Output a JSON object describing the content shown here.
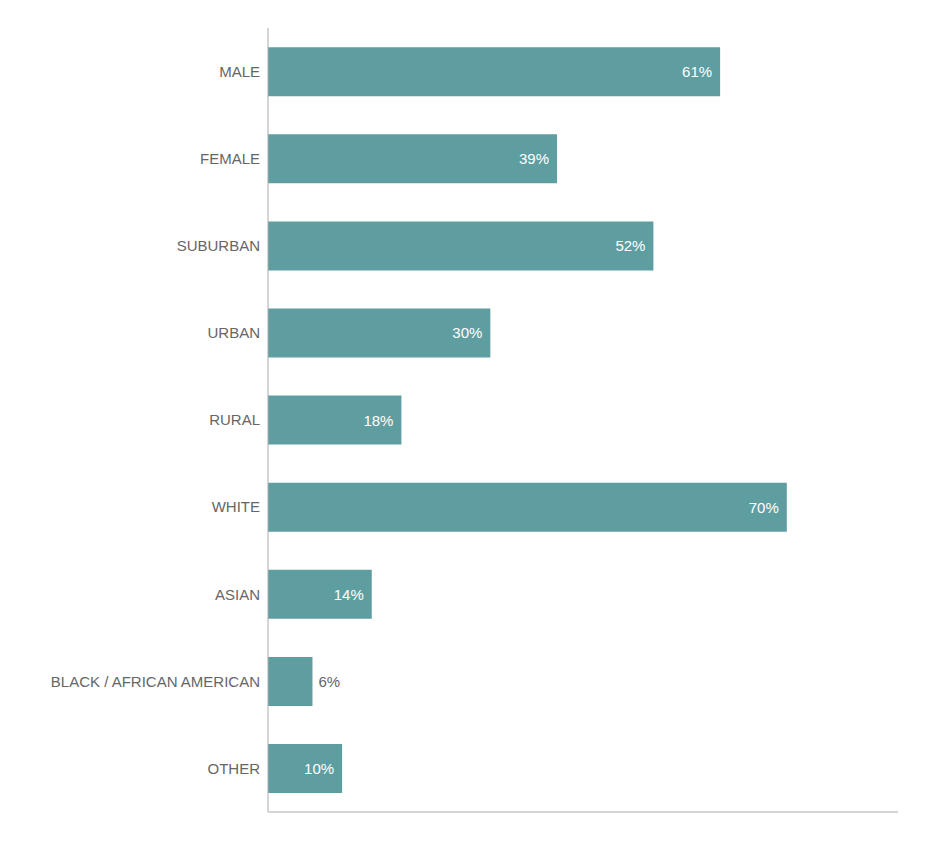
{
  "chart_data": {
    "type": "bar",
    "orientation": "horizontal",
    "categories": [
      "MALE",
      "FEMALE",
      "SUBURBAN",
      "URBAN",
      "RURAL",
      "WHITE",
      "ASIAN",
      "BLACK / AFRICAN AMERICAN",
      "OTHER"
    ],
    "values": [
      61,
      39,
      52,
      30,
      18,
      70,
      14,
      6,
      10
    ],
    "value_labels": [
      "61%",
      "39%",
      "52%",
      "30%",
      "18%",
      "70%",
      "14%",
      "6%",
      "10%"
    ],
    "color": "#5f9ea0",
    "xlim": [
      0,
      85
    ],
    "data_labels": true,
    "tick_labels": "y"
  }
}
